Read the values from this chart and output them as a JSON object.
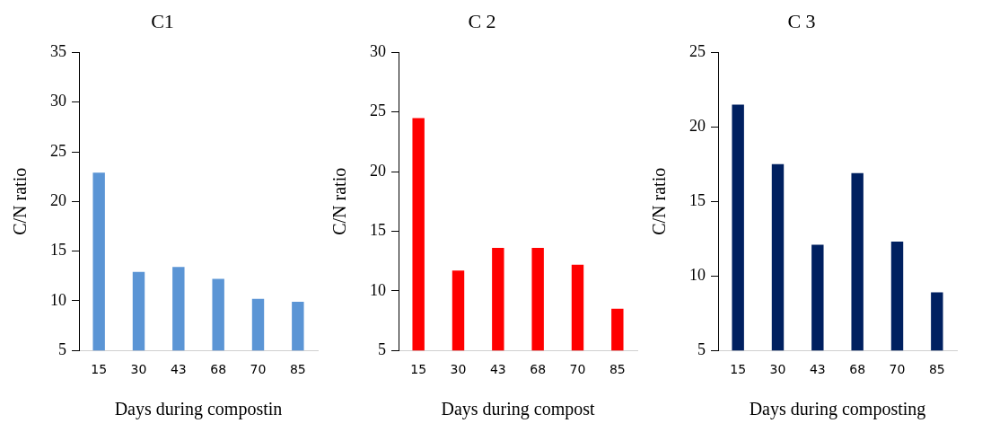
{
  "chart_data": [
    {
      "type": "bar",
      "title": "C1",
      "xlabel": "Days during compostin",
      "ylabel": "C/N ratio",
      "categories": [
        "15",
        "30",
        "43",
        "68",
        "70",
        "85"
      ],
      "values": [
        22.9,
        12.9,
        13.4,
        12.2,
        10.2,
        9.9
      ],
      "color": "#5b95d5",
      "ylim": [
        5,
        35
      ],
      "yticks": [
        5,
        10,
        15,
        20,
        25,
        30,
        35
      ],
      "grid": false
    },
    {
      "type": "bar",
      "title": "C 2",
      "xlabel": "Days during compost",
      "ylabel": "C/N ratio",
      "categories": [
        "15",
        "30",
        "43",
        "68",
        "70",
        "85"
      ],
      "values": [
        24.5,
        11.7,
        13.6,
        13.6,
        12.2,
        8.5
      ],
      "color": "#ff0000",
      "ylim": [
        5,
        30
      ],
      "yticks": [
        5,
        10,
        15,
        20,
        25,
        30
      ],
      "grid": false
    },
    {
      "type": "bar",
      "title": "C 3",
      "xlabel": "Days during composting",
      "ylabel": "C/N ratio",
      "categories": [
        "15",
        "30",
        "43",
        "68",
        "70",
        "85"
      ],
      "values": [
        21.5,
        17.5,
        12.1,
        16.9,
        12.3,
        8.9
      ],
      "color": "#002060",
      "ylim": [
        5,
        25
      ],
      "yticks": [
        5,
        10,
        15,
        20,
        25
      ],
      "grid": false
    }
  ]
}
